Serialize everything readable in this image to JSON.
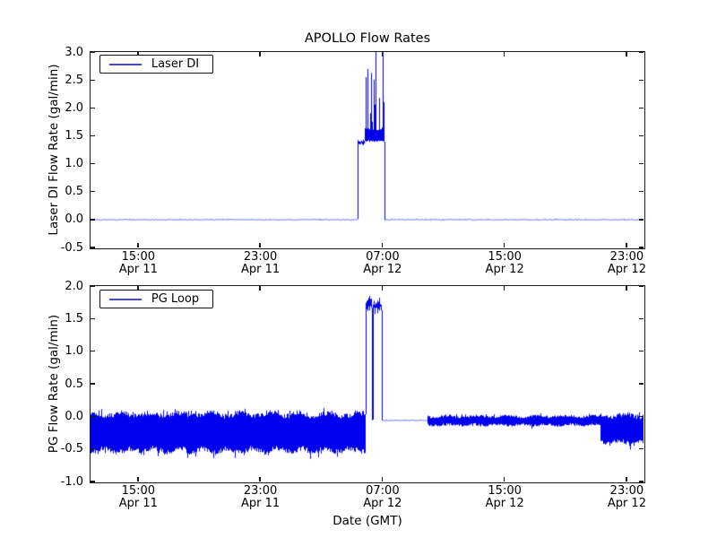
{
  "figure": {
    "title": "APOLLO Flow Rates",
    "xlabel": "Date (GMT)",
    "background_color": "#ffffff",
    "axis_color": "#1a1a1a",
    "line_color": "#0000ee"
  },
  "chart_data": [
    {
      "type": "line",
      "title": "APOLLO Flow Rates",
      "ylabel": "Laser DI Flow Rate (gal/min)",
      "ylim": [
        -0.5,
        3.0
      ],
      "yticks": [
        {
          "v": 3.0,
          "label": "3.0"
        },
        {
          "v": 2.5,
          "label": "2.5"
        },
        {
          "v": 2.0,
          "label": "2.0"
        },
        {
          "v": 1.5,
          "label": "1.5"
        },
        {
          "v": 1.0,
          "label": "1.0"
        },
        {
          "v": 0.5,
          "label": "0.5"
        },
        {
          "v": 0.0,
          "label": "0.0"
        },
        {
          "v": -0.5,
          "label": "-0.5"
        }
      ],
      "x_unit": "hours since Apr 11 00:00 GMT",
      "xlim_hours": [
        11.9,
        48.12
      ],
      "xticks": [
        {
          "hour": 15,
          "time": "15:00",
          "date": "Apr 11"
        },
        {
          "hour": 23,
          "time": "23:00",
          "date": "Apr 11"
        },
        {
          "hour": 31,
          "time": "07:00",
          "date": "Apr 12"
        },
        {
          "hour": 39,
          "time": "15:00",
          "date": "Apr 12"
        },
        {
          "hour": 47,
          "time": "23:00",
          "date": "Apr 12"
        }
      ],
      "legend_position": "upper left",
      "grid": false,
      "series": [
        {
          "name": "Laser DI",
          "color": "#0000ee",
          "seed": 42,
          "segments": [
            {
              "t0": 11.9,
              "t1": 29.42,
              "kind": "flat",
              "value": 0.0,
              "noise": 0.012
            },
            {
              "t0": 29.42,
              "t1": 29.85,
              "kind": "flat",
              "value": 1.38,
              "noise": 0.05
            },
            {
              "t0": 29.85,
              "t1": 31.15,
              "kind": "spiky",
              "base_lo": 1.42,
              "base_hi": 1.6,
              "spike_max": 2.75,
              "spike_prob": 0.55,
              "clipped_spikes_t": [
                30.6,
                31.05
              ],
              "clip_value": 3.0
            },
            {
              "t0": 31.15,
              "t1": 48.12,
              "kind": "flat",
              "value": 0.0,
              "noise": 0.012
            }
          ]
        }
      ]
    },
    {
      "type": "line",
      "ylabel": "PG Flow Rate (gal/min)",
      "xlabel": "Date (GMT)",
      "ylim": [
        -1.0,
        2.0
      ],
      "yticks": [
        {
          "v": 2.0,
          "label": "2.0"
        },
        {
          "v": 1.5,
          "label": "1.5"
        },
        {
          "v": 1.0,
          "label": "1.0"
        },
        {
          "v": 0.5,
          "label": "0.5"
        },
        {
          "v": 0.0,
          "label": "0.0"
        },
        {
          "v": -0.5,
          "label": "-0.5"
        },
        {
          "v": -1.0,
          "label": "-1.0"
        }
      ],
      "x_unit": "hours since Apr 11 00:00 GMT",
      "xlim_hours": [
        11.9,
        48.12
      ],
      "xticks": [
        {
          "hour": 15,
          "time": "15:00",
          "date": "Apr 11"
        },
        {
          "hour": 23,
          "time": "23:00",
          "date": "Apr 11"
        },
        {
          "hour": 31,
          "time": "07:00",
          "date": "Apr 12"
        },
        {
          "hour": 39,
          "time": "15:00",
          "date": "Apr 12"
        },
        {
          "hour": 47,
          "time": "23:00",
          "date": "Apr 12"
        }
      ],
      "legend_position": "upper left",
      "grid": false,
      "series": [
        {
          "name": "PG Loop",
          "color": "#0000ee",
          "seed": 1337,
          "segments": [
            {
              "t0": 11.9,
              "t1": 29.92,
              "kind": "band",
              "top": 0.03,
              "bottom": -0.52,
              "edge_noise": 0.07
            },
            {
              "t0": 29.92,
              "t1": 30.32,
              "kind": "flat",
              "value": 1.74,
              "noise": 0.13
            },
            {
              "t0": 30.32,
              "t1": 30.4,
              "kind": "flat",
              "value": -0.05,
              "noise": 0.01
            },
            {
              "t0": 30.4,
              "t1": 31.0,
              "kind": "flat",
              "value": 1.7,
              "noise": 0.13
            },
            {
              "t0": 31.0,
              "t1": 33.98,
              "kind": "flat",
              "value": -0.06,
              "noise": 0.01
            },
            {
              "t0": 33.98,
              "t1": 45.3,
              "kind": "band",
              "top": 0.0,
              "bottom": -0.13,
              "edge_noise": 0.03
            },
            {
              "t0": 45.3,
              "t1": 48.12,
              "kind": "band",
              "top": 0.01,
              "bottom": -0.4,
              "edge_noise": 0.06
            }
          ]
        }
      ]
    }
  ]
}
